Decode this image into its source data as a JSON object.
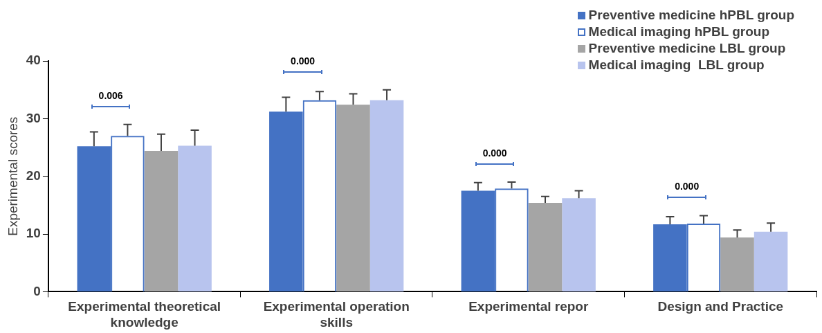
{
  "chart_data": {
    "type": "bar",
    "ylabel": "Experimental scores",
    "categories": [
      "Experimental theoretical knowledge",
      "Experimental operation skills",
      "Experimental repor",
      "Design and Practice"
    ],
    "series": [
      {
        "name": "Preventive medicine hPBL group",
        "color": "#4472c4",
        "values": [
          25.2,
          31.2,
          17.5,
          11.7
        ],
        "errors": [
          [
            25.2,
            27.7
          ],
          [
            31.2,
            33.7
          ],
          [
            17.5,
            18.9
          ],
          [
            11.7,
            13.0
          ]
        ]
      },
      {
        "name": "Medical imaging hPBL group",
        "color": "#4472c4",
        "values": [
          27.0,
          33.2,
          17.9,
          11.8
        ],
        "errors": [
          [
            27.0,
            29.0
          ],
          [
            33.2,
            34.7
          ],
          [
            17.9,
            19.0
          ],
          [
            11.8,
            13.2
          ]
        ]
      },
      {
        "name": "Preventive medicine LBL group",
        "color": "#a5a5a5",
        "values": [
          24.4,
          32.4,
          15.4,
          9.4
        ],
        "errors": [
          [
            24.4,
            27.3
          ],
          [
            32.4,
            34.3
          ],
          [
            15.4,
            16.5
          ],
          [
            9.4,
            10.7
          ]
        ]
      },
      {
        "name": "Medical imaging  LBL group",
        "color": "#b8c4ee",
        "values": [
          25.3,
          33.2,
          16.2,
          10.4
        ],
        "errors": [
          [
            25.3,
            28.0
          ],
          [
            33.2,
            35.0
          ],
          [
            16.2,
            17.5
          ],
          [
            10.4,
            11.9
          ]
        ]
      }
    ],
    "annotations": [
      "0.006",
      "0.000",
      "0.000",
      "0.000"
    ],
    "ylim": [
      0,
      40
    ],
    "yticks": [
      0,
      10,
      20,
      30,
      40
    ],
    "grid": false,
    "legend": "top right"
  }
}
